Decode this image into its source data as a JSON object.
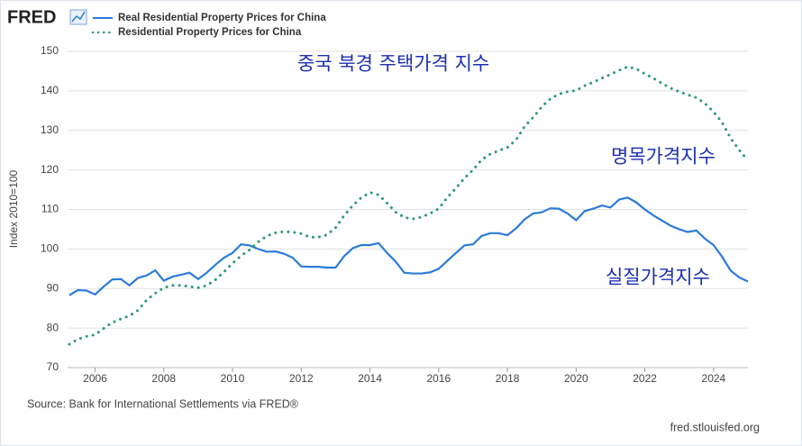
{
  "chart_data": {
    "type": "line",
    "logo": "FRED",
    "ylabel": "Index 2010=100",
    "source": "Source: Bank for International Settlements via FRED®",
    "credit": "fred.stlouisfed.org",
    "annotations": [
      "중국 북경 주택가격 지수",
      "명목가격지수",
      "실질가격지수"
    ],
    "xlim": [
      2005.2,
      2025.0
    ],
    "xticks": [
      2006,
      2008,
      2010,
      2012,
      2014,
      2016,
      2018,
      2020,
      2022,
      2024
    ],
    "ylim": [
      70,
      150
    ],
    "yticks": [
      70,
      80,
      90,
      100,
      110,
      120,
      130,
      140,
      150
    ],
    "grid": true,
    "x": [
      2005.25,
      2005.5,
      2005.75,
      2006,
      2006.25,
      2006.5,
      2006.75,
      2007,
      2007.25,
      2007.5,
      2007.75,
      2008,
      2008.25,
      2008.5,
      2008.75,
      2009,
      2009.25,
      2009.5,
      2009.75,
      2010,
      2010.25,
      2010.5,
      2010.75,
      2011,
      2011.25,
      2011.5,
      2011.75,
      2012,
      2012.25,
      2012.5,
      2012.75,
      2013,
      2013.25,
      2013.5,
      2013.75,
      2014,
      2014.25,
      2014.5,
      2014.75,
      2015,
      2015.25,
      2015.5,
      2015.75,
      2016,
      2016.25,
      2016.5,
      2016.75,
      2017,
      2017.25,
      2017.5,
      2017.75,
      2018,
      2018.25,
      2018.5,
      2018.75,
      2019,
      2019.25,
      2019.5,
      2019.75,
      2020,
      2020.25,
      2020.5,
      2020.75,
      2021,
      2021.25,
      2021.5,
      2021.75,
      2022,
      2022.25,
      2022.5,
      2022.75,
      2023,
      2023.25,
      2023.5,
      2023.75,
      2024,
      2024.25,
      2024.5,
      2024.75,
      2025
    ],
    "series": [
      {
        "name": "Real Residential Property Prices for China",
        "color": "#2b7bdb",
        "dash": false,
        "values": [
          88.3,
          89.6,
          89.5,
          88.5,
          90.5,
          92.3,
          92.4,
          90.8,
          92.7,
          93.3,
          94.6,
          92,
          93,
          93.5,
          94,
          92.4,
          94,
          96,
          97.8,
          99,
          101.2,
          100.9,
          100,
          99.3,
          99.4,
          98.8,
          97.8,
          95.6,
          95.5,
          95.5,
          95.3,
          95.3,
          98.2,
          100.2,
          101,
          101,
          101.5,
          99,
          96.8,
          94,
          93.8,
          93.8,
          94.1,
          95,
          97,
          99,
          100.9,
          101.2,
          103.3,
          104,
          104,
          103.5,
          105.2,
          107.5,
          109,
          109.3,
          110.3,
          110.2,
          109,
          107.3,
          109.6,
          110.2,
          111,
          110.5,
          112.5,
          113,
          111.8,
          110,
          108.5,
          107.2,
          105.9,
          105,
          104.3,
          104.7,
          102.6,
          101,
          98,
          94.5,
          92.8,
          91.8
        ]
      },
      {
        "name": "Residential Property Prices for China",
        "color": "#2f9b6e",
        "dash": true,
        "values": [
          75.9,
          77.2,
          77.9,
          78.3,
          79.9,
          81.4,
          82.3,
          83.1,
          84.5,
          87.1,
          88.8,
          90.2,
          90.8,
          90.8,
          90.5,
          90.2,
          90.8,
          92.2,
          94.2,
          96.4,
          98.3,
          99.8,
          101.8,
          103.3,
          104.1,
          104.4,
          104.3,
          103.9,
          103,
          103,
          103.6,
          105.4,
          108.5,
          111,
          113,
          114.3,
          113.7,
          111.6,
          109.3,
          108,
          107.6,
          108.1,
          109,
          110.2,
          113,
          115.4,
          117.9,
          120,
          122.6,
          124,
          124.9,
          125.7,
          127.6,
          131,
          133.3,
          136,
          138,
          139.2,
          139.8,
          140.1,
          141.3,
          142.2,
          143.2,
          144.2,
          145.2,
          146.1,
          145.6,
          144.3,
          143.2,
          141.9,
          140.7,
          139.8,
          139,
          138.3,
          136.8,
          134.7,
          132,
          128,
          125,
          122.4
        ]
      }
    ]
  }
}
